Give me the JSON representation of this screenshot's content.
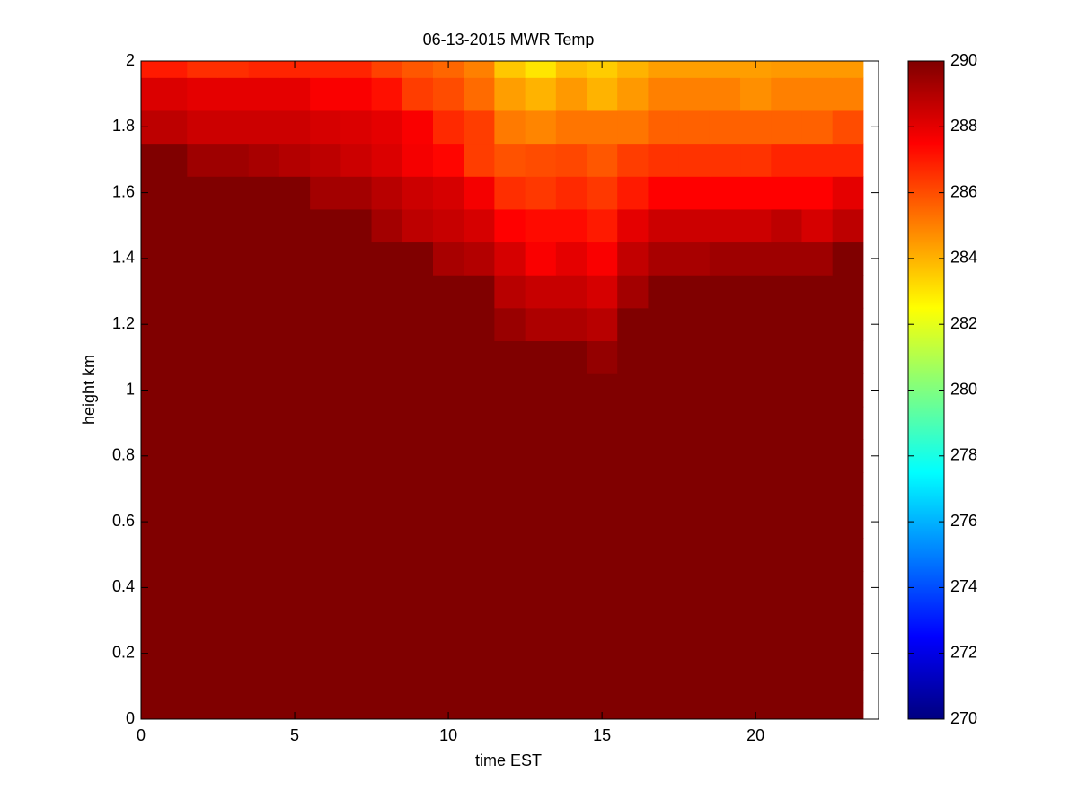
{
  "chart_data": {
    "type": "heatmap",
    "title": "06-13-2015 MWR Temp",
    "xlabel": "time EST",
    "ylabel": "height km",
    "x": [
      0,
      1,
      2,
      3,
      4,
      5,
      6,
      7,
      8,
      9,
      10,
      11,
      12,
      13,
      14,
      15,
      16,
      17,
      18,
      19,
      20,
      21,
      22,
      23
    ],
    "y": [
      0,
      0.1,
      0.2,
      0.3,
      0.4,
      0.5,
      0.6,
      0.7,
      0.8,
      0.9,
      1,
      1.1,
      1.2,
      1.3,
      1.4,
      1.5,
      1.6,
      1.7,
      1.8,
      1.9,
      2
    ],
    "z": [
      [
        290,
        290,
        290,
        290,
        290,
        290,
        290,
        290,
        290,
        290,
        290,
        290,
        290,
        290,
        290,
        290,
        290,
        290,
        290,
        290,
        290,
        290,
        290,
        290
      ],
      [
        290,
        290,
        290,
        290,
        290,
        290,
        290,
        290,
        290,
        290,
        290,
        290,
        290,
        290,
        290,
        290,
        290,
        290,
        290,
        290,
        290,
        290,
        290,
        290
      ],
      [
        290,
        290,
        290,
        290,
        290,
        290,
        290,
        290,
        290,
        290,
        290,
        290,
        290,
        290,
        290,
        290,
        290,
        290,
        290,
        290,
        290,
        290,
        290,
        290
      ],
      [
        290,
        290,
        290,
        290,
        290,
        290,
        290,
        290,
        290,
        290,
        290,
        290,
        290,
        290,
        290,
        290,
        290,
        290,
        290,
        290,
        290,
        290,
        290,
        290
      ],
      [
        290,
        290,
        290,
        290,
        290,
        290,
        290,
        290,
        290,
        290,
        290,
        290,
        290,
        290,
        290,
        290,
        290,
        290,
        290,
        290,
        290,
        290,
        290,
        290
      ],
      [
        290,
        290,
        290,
        290,
        290,
        290,
        290,
        290,
        290,
        290,
        290,
        290,
        290,
        290,
        290,
        290,
        290,
        290,
        290,
        290,
        290,
        290,
        290,
        290
      ],
      [
        290,
        290,
        290,
        290,
        290,
        290,
        290,
        290,
        290,
        290,
        290,
        290,
        290,
        290,
        290,
        290,
        290,
        290,
        290,
        290,
        290,
        290,
        290,
        290
      ],
      [
        290,
        290,
        290,
        290,
        290,
        290,
        290,
        290,
        290,
        290,
        290,
        290,
        290,
        290,
        290,
        290,
        290,
        290,
        290,
        290,
        290,
        290,
        290,
        290
      ],
      [
        290,
        290,
        290,
        290,
        290,
        290,
        290,
        290,
        290,
        290,
        290,
        290,
        290,
        290,
        290,
        290,
        290,
        290,
        290,
        290,
        290,
        290,
        290,
        290
      ],
      [
        290,
        290,
        290,
        290,
        290,
        290,
        290,
        290,
        290,
        290,
        290,
        290,
        290,
        290,
        290,
        290,
        290,
        290,
        290,
        290,
        290,
        290,
        290,
        290
      ],
      [
        290,
        290,
        290,
        290,
        290,
        290,
        290,
        290,
        290,
        290,
        290,
        290,
        290,
        290,
        290,
        290,
        290,
        290,
        290,
        290,
        290,
        290,
        290,
        290
      ],
      [
        290,
        290,
        290,
        290,
        290,
        290,
        290,
        290,
        290,
        290,
        290,
        290,
        290,
        290,
        290,
        289.6,
        290,
        290,
        290,
        290,
        290,
        290,
        290,
        290
      ],
      [
        290,
        290,
        290,
        290,
        290,
        290,
        290,
        290,
        290,
        290,
        290,
        290,
        289.5,
        289.1,
        289.1,
        288.9,
        290,
        290,
        290,
        290,
        290,
        290,
        290,
        290
      ],
      [
        290,
        290,
        290,
        290,
        290,
        290,
        290,
        290,
        290,
        290,
        290,
        290,
        288.9,
        288.6,
        288.6,
        288.3,
        289.3,
        290,
        290,
        290,
        290,
        290,
        290,
        290
      ],
      [
        290,
        290,
        290,
        290,
        290,
        290,
        290,
        290,
        290,
        290,
        289.2,
        289,
        288.3,
        287.6,
        288,
        287.6,
        288.7,
        289.2,
        289.2,
        289.4,
        289.4,
        289.4,
        289.4,
        290
      ],
      [
        290,
        290,
        290,
        290,
        290,
        290,
        290,
        290,
        289.3,
        288.8,
        288.6,
        288.3,
        287.5,
        287.3,
        287.3,
        287,
        288,
        288.5,
        288.5,
        288.5,
        288.5,
        288.8,
        288.3,
        288.8
      ],
      [
        290,
        290,
        290,
        290,
        290,
        290,
        289.3,
        289.3,
        288.9,
        288.5,
        288.3,
        287.7,
        286.6,
        286.4,
        286.7,
        286.4,
        287,
        287.5,
        287.5,
        287.5,
        287.5,
        287.5,
        287.5,
        288
      ],
      [
        290,
        290,
        289.4,
        289.4,
        289.2,
        289,
        288.8,
        288.5,
        288.2,
        287.7,
        287.4,
        286.3,
        285.9,
        286,
        286.1,
        285.8,
        286.3,
        286.5,
        286.5,
        286.5,
        286.5,
        286.8,
        286.8,
        286.8
      ],
      [
        288.8,
        288.8,
        288.5,
        288.5,
        288.5,
        288.5,
        288.3,
        288.2,
        288,
        287.6,
        286.7,
        286.3,
        285.1,
        284.9,
        285.2,
        285.2,
        285.2,
        285.6,
        285.6,
        285.6,
        285.6,
        285.6,
        285.6,
        286
      ],
      [
        288.2,
        288.2,
        288,
        288,
        288,
        288,
        287.6,
        287.6,
        287.2,
        286.3,
        286,
        285.4,
        284.4,
        284,
        284.5,
        284,
        284.5,
        285,
        285,
        285,
        284.7,
        285,
        285,
        285
      ],
      [
        287,
        287,
        286.6,
        286.6,
        286.8,
        286.8,
        286.8,
        286.8,
        286.2,
        285.8,
        285.5,
        285,
        283.6,
        283,
        283.8,
        283.5,
        284,
        284.4,
        284.4,
        284.4,
        284.4,
        284.5,
        284.5,
        284.5
      ]
    ],
    "xlim": [
      0,
      24
    ],
    "xticks": [
      0,
      5,
      10,
      15,
      20
    ],
    "ylim": [
      0,
      2
    ],
    "yticks": [
      0,
      0.2,
      0.4,
      0.6,
      0.8,
      1,
      1.2,
      1.4,
      1.6,
      1.8,
      2
    ],
    "clim": [
      270,
      290
    ],
    "cticks": [
      270,
      272,
      274,
      276,
      278,
      280,
      282,
      284,
      286,
      288,
      290
    ],
    "colormap": "jet"
  }
}
